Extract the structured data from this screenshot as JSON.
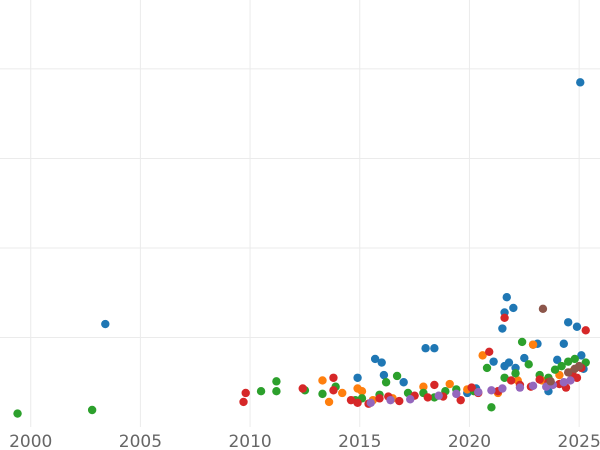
{
  "chart_data": {
    "type": "scatter",
    "title": "",
    "xlabel": "",
    "ylabel": "",
    "xlim": [
      1998.6,
      2025.95
    ],
    "ylim": [
      0,
      477
    ],
    "x_ticks": [
      "2000",
      "2005",
      "2010",
      "2015",
      "2020",
      "2025"
    ],
    "y_ticks": [
      100,
      200,
      300,
      400
    ],
    "y_tick_labels_visible": false,
    "grid": true,
    "legend": "none",
    "series": [
      {
        "color": "#1f77b4",
        "points": [
          [
            2003.4,
            115
          ],
          [
            2014.9,
            55
          ],
          [
            2015.7,
            76
          ],
          [
            2016.0,
            72
          ],
          [
            2016.1,
            58
          ],
          [
            2017.0,
            50
          ],
          [
            2018.0,
            88
          ],
          [
            2018.4,
            88
          ],
          [
            2019.9,
            38
          ],
          [
            2020.3,
            43
          ],
          [
            2021.1,
            73
          ],
          [
            2021.5,
            110
          ],
          [
            2021.6,
            128
          ],
          [
            2021.7,
            145
          ],
          [
            2021.8,
            72
          ],
          [
            2021.6,
            68
          ],
          [
            2022.0,
            133
          ],
          [
            2022.1,
            66
          ],
          [
            2022.5,
            77
          ],
          [
            2022.9,
            92
          ],
          [
            2023.1,
            93
          ],
          [
            2023.6,
            40
          ],
          [
            2024.0,
            75
          ],
          [
            2024.3,
            93
          ],
          [
            2024.5,
            117
          ],
          [
            2024.9,
            112
          ],
          [
            2025.05,
            385
          ],
          [
            2025.1,
            80
          ],
          [
            2025.2,
            65
          ]
        ]
      },
      {
        "color": "#ff7f0e",
        "points": [
          [
            2013.3,
            52
          ],
          [
            2013.6,
            28
          ],
          [
            2014.2,
            38
          ],
          [
            2014.9,
            43
          ],
          [
            2015.1,
            40
          ],
          [
            2015.6,
            30
          ],
          [
            2016.5,
            32
          ],
          [
            2017.9,
            45
          ],
          [
            2019.1,
            48
          ],
          [
            2019.9,
            42
          ],
          [
            2020.6,
            80
          ],
          [
            2021.3,
            38
          ],
          [
            2022.2,
            52
          ],
          [
            2022.9,
            92
          ],
          [
            2023.3,
            52
          ],
          [
            2023.7,
            48
          ],
          [
            2024.1,
            58
          ],
          [
            2024.7,
            62
          ]
        ]
      },
      {
        "color": "#2ca02c",
        "points": [
          [
            1999.4,
            15
          ],
          [
            2002.8,
            19
          ],
          [
            2010.5,
            40
          ],
          [
            2011.2,
            51
          ],
          [
            2011.2,
            40
          ],
          [
            2012.5,
            41
          ],
          [
            2013.3,
            37
          ],
          [
            2013.9,
            45
          ],
          [
            2014.8,
            30
          ],
          [
            2015.1,
            32
          ],
          [
            2015.9,
            36
          ],
          [
            2016.2,
            50
          ],
          [
            2016.7,
            57
          ],
          [
            2017.2,
            38
          ],
          [
            2017.9,
            38
          ],
          [
            2018.4,
            33
          ],
          [
            2018.9,
            40
          ],
          [
            2019.4,
            42
          ],
          [
            2020.2,
            40
          ],
          [
            2020.8,
            66
          ],
          [
            2021.0,
            22
          ],
          [
            2021.6,
            55
          ],
          [
            2022.1,
            60
          ],
          [
            2022.4,
            95
          ],
          [
            2022.7,
            70
          ],
          [
            2023.2,
            58
          ],
          [
            2023.6,
            55
          ],
          [
            2023.9,
            64
          ],
          [
            2024.2,
            68
          ],
          [
            2024.5,
            73
          ],
          [
            2024.8,
            76
          ],
          [
            2025.3,
            72
          ]
        ]
      },
      {
        "color": "#d62728",
        "points": [
          [
            2009.7,
            28
          ],
          [
            2009.8,
            38
          ],
          [
            2012.4,
            43
          ],
          [
            2013.8,
            41
          ],
          [
            2013.8,
            55
          ],
          [
            2014.6,
            30
          ],
          [
            2014.9,
            27
          ],
          [
            2015.4,
            26
          ],
          [
            2015.9,
            32
          ],
          [
            2016.3,
            34
          ],
          [
            2016.8,
            29
          ],
          [
            2017.5,
            35
          ],
          [
            2018.1,
            33
          ],
          [
            2018.4,
            47
          ],
          [
            2018.8,
            34
          ],
          [
            2019.6,
            30
          ],
          [
            2020.1,
            44
          ],
          [
            2020.4,
            38
          ],
          [
            2020.9,
            84
          ],
          [
            2021.3,
            40
          ],
          [
            2021.6,
            122
          ],
          [
            2021.9,
            52
          ],
          [
            2022.3,
            47
          ],
          [
            2022.8,
            45
          ],
          [
            2023.2,
            53
          ],
          [
            2023.6,
            50
          ],
          [
            2024.1,
            48
          ],
          [
            2024.4,
            44
          ],
          [
            2024.7,
            58
          ],
          [
            2024.9,
            55
          ],
          [
            2025.1,
            66
          ],
          [
            2025.3,
            108
          ]
        ]
      },
      {
        "color": "#9467bd",
        "points": [
          [
            2015.5,
            27
          ],
          [
            2016.4,
            30
          ],
          [
            2017.3,
            31
          ],
          [
            2018.6,
            35
          ],
          [
            2019.4,
            37
          ],
          [
            2020.4,
            39
          ],
          [
            2021.0,
            41
          ],
          [
            2021.5,
            43
          ],
          [
            2022.3,
            44
          ],
          [
            2022.9,
            46
          ],
          [
            2023.5,
            45
          ],
          [
            2023.8,
            47
          ],
          [
            2024.3,
            50
          ],
          [
            2024.6,
            52
          ]
        ]
      },
      {
        "color": "#8c564b",
        "points": [
          [
            2023.35,
            132
          ],
          [
            2023.7,
            51
          ],
          [
            2024.5,
            61
          ],
          [
            2024.8,
            65
          ],
          [
            2025.0,
            68
          ]
        ]
      }
    ]
  }
}
